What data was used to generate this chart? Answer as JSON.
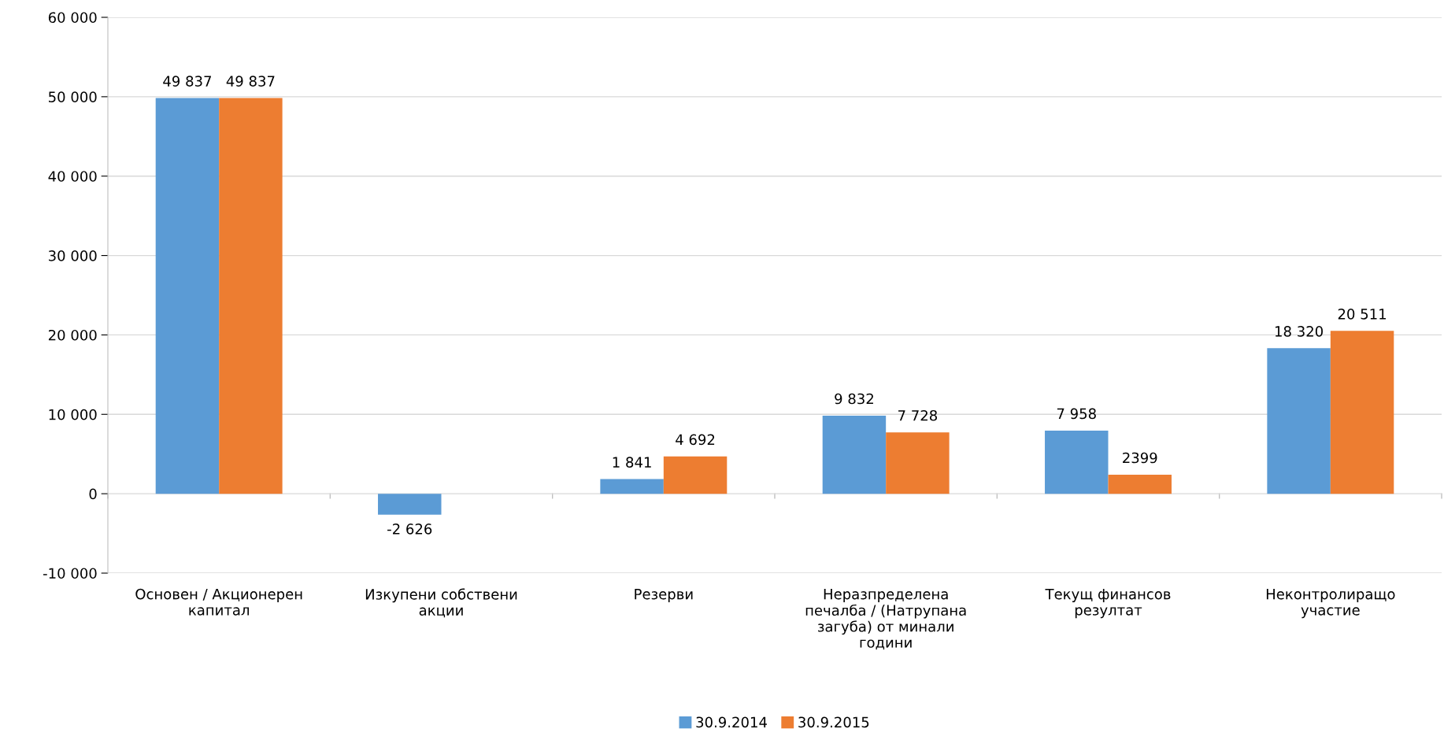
{
  "chart_data": {
    "type": "bar",
    "categories": [
      "Основен / Акционерен\nкапитал",
      "Изкупени собствени\nакции",
      "Резерви",
      "Неразпределена\nпечалба / (Натрупана\nзагуба) от минали\nгодини",
      "Текущ финансов\nрезултат",
      "Неконтролиращо\nучастие"
    ],
    "series": [
      {
        "name": "30.9.2014",
        "color": "#5b9bd5",
        "values": [
          49837,
          -2626,
          1841,
          9832,
          7958,
          18320
        ],
        "value_labels": [
          "49 837",
          "-2 626",
          "1 841",
          "9 832",
          "7 958",
          "18 320"
        ]
      },
      {
        "name": "30.9.2015",
        "color": "#ed7d31",
        "values": [
          49837,
          null,
          4692,
          7728,
          2399,
          20511
        ],
        "value_labels": [
          "49 837",
          null,
          "4 692",
          "7 728",
          "2399",
          "20 511"
        ]
      }
    ],
    "ylim": [
      -10000,
      60000
    ],
    "yticks": [
      {
        "value": -10000,
        "label": "-10 000"
      },
      {
        "value": 0,
        "label": "0"
      },
      {
        "value": 10000,
        "label": "10 000"
      },
      {
        "value": 20000,
        "label": "20 000"
      },
      {
        "value": 30000,
        "label": "30 000"
      },
      {
        "value": 40000,
        "label": "40 000"
      },
      {
        "value": 50000,
        "label": "50 000"
      },
      {
        "value": 60000,
        "label": "60 000"
      }
    ],
    "grid": "y",
    "legend": "bottom"
  }
}
